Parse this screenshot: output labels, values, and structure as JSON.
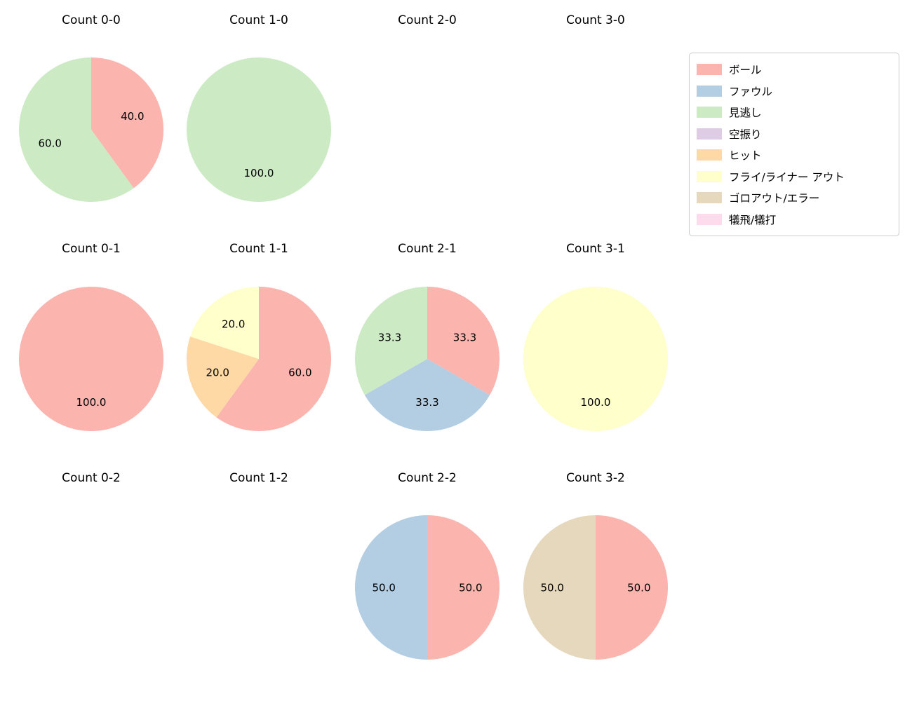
{
  "figure": {
    "background": "#ffffff"
  },
  "legend": {
    "items": [
      {
        "label": "ボール",
        "color": "#fbb4ae"
      },
      {
        "label": "ファウル",
        "color": "#b3cde3"
      },
      {
        "label": "見逃し",
        "color": "#ccebc5"
      },
      {
        "label": "空振り",
        "color": "#decbe4"
      },
      {
        "label": "ヒット",
        "color": "#fed9a6"
      },
      {
        "label": "フライ/ライナー アウト",
        "color": "#ffffcc"
      },
      {
        "label": "ゴロアウト/エラー",
        "color": "#e5d8bd"
      },
      {
        "label": "犠飛/犠打",
        "color": "#fddaec"
      }
    ]
  },
  "chart_data": [
    {
      "type": "pie",
      "title": "Count 0-0",
      "start_angle": 90,
      "direction": "clockwise",
      "slices": [
        {
          "label": "ボール",
          "value": 40.0,
          "pct_text": "40.0"
        },
        {
          "label": "見逃し",
          "value": 60.0,
          "pct_text": "60.0"
        }
      ]
    },
    {
      "type": "pie",
      "title": "Count 1-0",
      "start_angle": 90,
      "direction": "clockwise",
      "slices": [
        {
          "label": "見逃し",
          "value": 100.0,
          "pct_text": "100.0"
        }
      ]
    },
    {
      "type": "pie",
      "title": "Count 2-0",
      "start_angle": 90,
      "direction": "clockwise",
      "slices": []
    },
    {
      "type": "pie",
      "title": "Count 3-0",
      "start_angle": 90,
      "direction": "clockwise",
      "slices": []
    },
    {
      "type": "pie",
      "title": "Count 0-1",
      "start_angle": 90,
      "direction": "clockwise",
      "slices": [
        {
          "label": "ボール",
          "value": 100.0,
          "pct_text": "100.0"
        }
      ]
    },
    {
      "type": "pie",
      "title": "Count 1-1",
      "start_angle": 90,
      "direction": "clockwise",
      "slices": [
        {
          "label": "ボール",
          "value": 60.0,
          "pct_text": "60.0"
        },
        {
          "label": "ヒット",
          "value": 20.0,
          "pct_text": "20.0"
        },
        {
          "label": "フライ/ライナー アウト",
          "value": 20.0,
          "pct_text": "20.0"
        }
      ]
    },
    {
      "type": "pie",
      "title": "Count 2-1",
      "start_angle": 90,
      "direction": "clockwise",
      "slices": [
        {
          "label": "ボール",
          "value": 33.3,
          "pct_text": "33.3"
        },
        {
          "label": "ファウル",
          "value": 33.3,
          "pct_text": "33.3"
        },
        {
          "label": "見逃し",
          "value": 33.3,
          "pct_text": "33.3"
        }
      ]
    },
    {
      "type": "pie",
      "title": "Count 3-1",
      "start_angle": 90,
      "direction": "clockwise",
      "slices": [
        {
          "label": "フライ/ライナー アウト",
          "value": 100.0,
          "pct_text": "100.0"
        }
      ]
    },
    {
      "type": "pie",
      "title": "Count 0-2",
      "start_angle": 90,
      "direction": "clockwise",
      "slices": []
    },
    {
      "type": "pie",
      "title": "Count 1-2",
      "start_angle": 90,
      "direction": "clockwise",
      "slices": []
    },
    {
      "type": "pie",
      "title": "Count 2-2",
      "start_angle": 90,
      "direction": "clockwise",
      "slices": [
        {
          "label": "ボール",
          "value": 50.0,
          "pct_text": "50.0"
        },
        {
          "label": "ファウル",
          "value": 50.0,
          "pct_text": "50.0"
        }
      ]
    },
    {
      "type": "pie",
      "title": "Count 3-2",
      "start_angle": 90,
      "direction": "clockwise",
      "slices": [
        {
          "label": "ボール",
          "value": 50.0,
          "pct_text": "50.0"
        },
        {
          "label": "ゴロアウト/エラー",
          "value": 50.0,
          "pct_text": "50.0"
        }
      ]
    }
  ]
}
